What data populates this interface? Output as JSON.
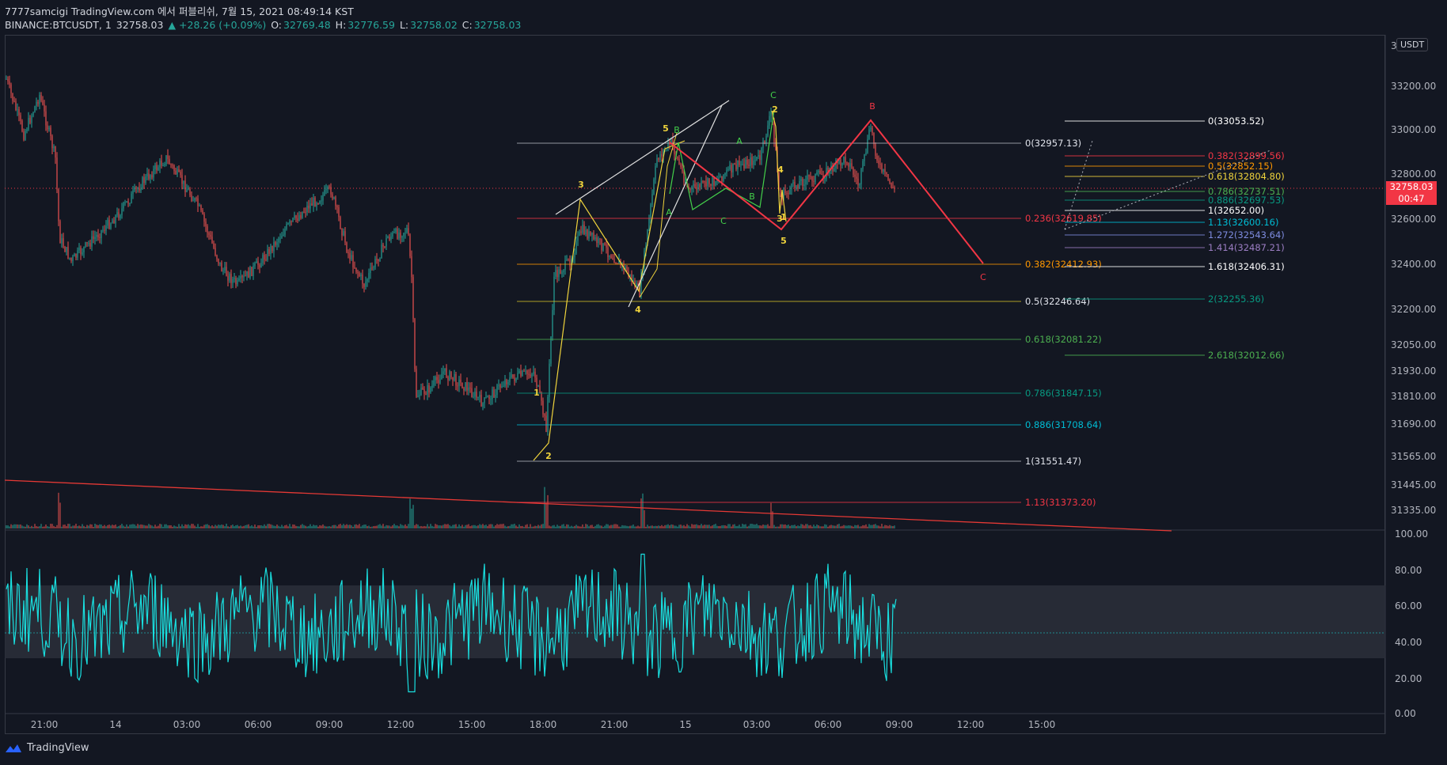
{
  "header": {
    "line1": "7777samcigi TradingView.com 에서 퍼블리쉬, 7월 15, 2021 08:49:14 KST",
    "symbol": "BINANCE:BTCUSDT, 1",
    "last": "32758.03",
    "change": "▲ +28.26 (+0.09%)",
    "o_label": "O:",
    "o": "32769.48",
    "h_label": "H:",
    "h": "32776.59",
    "l_label": "L:",
    "l": "32758.02",
    "c_label": "C:",
    "c": "32758.03"
  },
  "price_axis": {
    "unit": "USDT",
    "top_partial": "3",
    "ticks": [
      "33200.00",
      "33000.00",
      "32800.00",
      "32600.00",
      "32400.00",
      "32200.00",
      "32050.00",
      "31930.00",
      "31810.00",
      "31690.00",
      "31565.00",
      "31445.00",
      "31335.00"
    ],
    "current_price": "32758.03",
    "countdown": "00:47"
  },
  "rsi_axis": {
    "ticks": [
      "100.00",
      "80.00",
      "60.00",
      "40.00",
      "20.00",
      "0.00"
    ]
  },
  "time_axis": {
    "ticks": [
      "21:00",
      "14",
      "03:00",
      "06:00",
      "09:00",
      "12:00",
      "15:00",
      "18:00",
      "21:00",
      "15",
      "03:00",
      "06:00",
      "09:00",
      "12:00",
      "15:00"
    ]
  },
  "fib_retracement": [
    {
      "label": "0(32957.13)",
      "color": "#b2b5be"
    },
    {
      "label": "0.236(32619.85)",
      "color": "#f23645"
    },
    {
      "label": "0.382(32412.93)",
      "color": "#ff9800"
    },
    {
      "label": "0.5(32246.64)",
      "color": "#d4c026"
    },
    {
      "label": "0.618(32081.22)",
      "color": "#4caf50"
    },
    {
      "label": "0.786(31847.15)",
      "color": "#089981"
    },
    {
      "label": "0.886(31708.64)",
      "color": "#00bcd4"
    },
    {
      "label": "1(31551.47)",
      "color": "#b2b5be"
    },
    {
      "label": "1.13(31373.20)",
      "color": "#f23645"
    }
  ],
  "fib_extension": [
    {
      "label": "0(33053.52)",
      "color": "#ffffff"
    },
    {
      "label": "0.382(32899.56)",
      "color": "#f23645"
    },
    {
      "label": "0.5(32852.15)",
      "color": "#ff9800"
    },
    {
      "label": "0.618(32804.80)",
      "color": "#f0d43c"
    },
    {
      "label": "0.786(32737.51)",
      "color": "#4caf50"
    },
    {
      "label": "0.886(32697.53)",
      "color": "#089981"
    },
    {
      "label": "1(32652.00)",
      "color": "#ffffff"
    },
    {
      "label": "1.13(32600.16)",
      "color": "#00bcd4"
    },
    {
      "label": "1.272(32543.64)",
      "color": "#7e8ce0"
    },
    {
      "label": "1.414(32487.21)",
      "color": "#9c7ec4"
    },
    {
      "label": "1.618(32406.31)",
      "color": "#ffffff"
    },
    {
      "label": "2(32255.36)",
      "color": "#089981"
    },
    {
      "label": "2.618(32012.66)",
      "color": "#4caf50"
    }
  ],
  "wave_labels": {
    "yellow": [
      "1",
      "2",
      "3",
      "4",
      "5",
      "1",
      "2",
      "3",
      "4",
      "5"
    ],
    "green": [
      "A",
      "B",
      "C",
      "A",
      "B",
      "C"
    ],
    "red": [
      "B",
      "C"
    ]
  },
  "colors": {
    "up": "#26a69a",
    "down": "#ef5350",
    "rsi": "#19e0e0",
    "bg": "#131722",
    "grid": "#363a45"
  },
  "footer": {
    "brand": "TradingView"
  }
}
